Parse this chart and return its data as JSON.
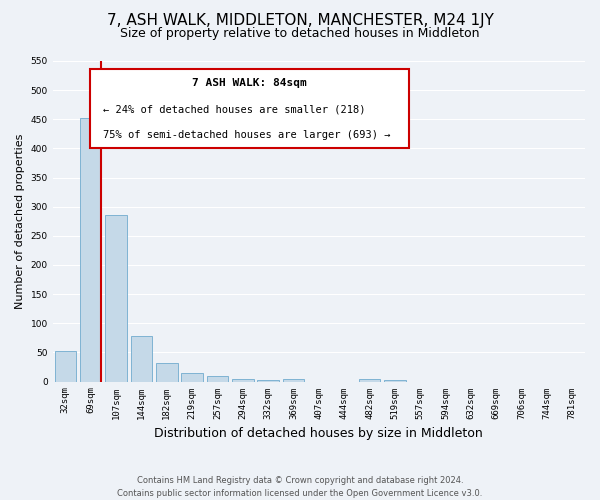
{
  "title": "7, ASH WALK, MIDDLETON, MANCHESTER, M24 1JY",
  "subtitle": "Size of property relative to detached houses in Middleton",
  "xlabel": "Distribution of detached houses by size in Middleton",
  "ylabel": "Number of detached properties",
  "bar_labels": [
    "32sqm",
    "69sqm",
    "107sqm",
    "144sqm",
    "182sqm",
    "219sqm",
    "257sqm",
    "294sqm",
    "332sqm",
    "369sqm",
    "407sqm",
    "444sqm",
    "482sqm",
    "519sqm",
    "557sqm",
    "594sqm",
    "632sqm",
    "669sqm",
    "706sqm",
    "744sqm",
    "781sqm"
  ],
  "bar_values": [
    52,
    452,
    285,
    78,
    32,
    15,
    9,
    5,
    3,
    5,
    0,
    0,
    5,
    3,
    0,
    0,
    0,
    0,
    0,
    0,
    0
  ],
  "bar_color": "#c5d9e8",
  "bar_edge_color": "#7fb3d3",
  "vline_x_index": 1,
  "vline_color": "#cc0000",
  "ylim": [
    0,
    550
  ],
  "yticks": [
    0,
    50,
    100,
    150,
    200,
    250,
    300,
    350,
    400,
    450,
    500,
    550
  ],
  "annotation_title": "7 ASH WALK: 84sqm",
  "annotation_line1": "← 24% of detached houses are smaller (218)",
  "annotation_line2": "75% of semi-detached houses are larger (693) →",
  "annotation_box_color": "#cc0000",
  "footer_line1": "Contains HM Land Registry data © Crown copyright and database right 2024.",
  "footer_line2": "Contains public sector information licensed under the Open Government Licence v3.0.",
  "bg_color": "#eef2f7",
  "grid_color": "#ffffff",
  "title_fontsize": 11,
  "subtitle_fontsize": 9,
  "ylabel_fontsize": 8,
  "xlabel_fontsize": 9,
  "tick_fontsize": 6.5,
  "footer_fontsize": 6,
  "annot_title_fontsize": 8,
  "annot_body_fontsize": 7.5
}
